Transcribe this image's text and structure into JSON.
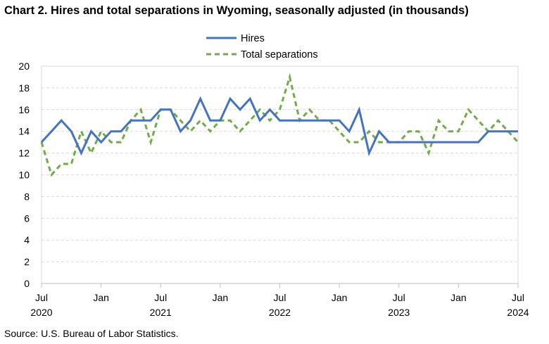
{
  "title": "Chart 2. Hires and total separations in Wyoming, seasonally adjusted (in thousands)",
  "source": "Source: U.S. Bureau of Labor Statistics.",
  "colors": {
    "hires": "#4472C4",
    "separations": "#70AD47",
    "grid": "#D9D9D9",
    "axis": "#BFBFBF"
  },
  "chart_data": {
    "type": "line",
    "ylim": [
      0,
      20
    ],
    "y_ticks": [
      "0",
      "2",
      "4",
      "6",
      "8",
      "10",
      "12",
      "14",
      "16",
      "18",
      "20"
    ],
    "x_tick_labels": [
      {
        "month": "Jul",
        "year": "2020",
        "index": 0
      },
      {
        "month": "Jan",
        "year": "",
        "index": 6
      },
      {
        "month": "Jul",
        "year": "2021",
        "index": 12
      },
      {
        "month": "Jan",
        "year": "",
        "index": 18
      },
      {
        "month": "Jul",
        "year": "2022",
        "index": 24
      },
      {
        "month": "Jan",
        "year": "",
        "index": 30
      },
      {
        "month": "Jul",
        "year": "2023",
        "index": 36
      },
      {
        "month": "Jan",
        "year": "",
        "index": 42
      },
      {
        "month": "Jul",
        "year": "2024",
        "index": 48
      }
    ],
    "x": [
      "2020-07",
      "2020-08",
      "2020-09",
      "2020-10",
      "2020-11",
      "2020-12",
      "2021-01",
      "2021-02",
      "2021-03",
      "2021-04",
      "2021-05",
      "2021-06",
      "2021-07",
      "2021-08",
      "2021-09",
      "2021-10",
      "2021-11",
      "2021-12",
      "2022-01",
      "2022-02",
      "2022-03",
      "2022-04",
      "2022-05",
      "2022-06",
      "2022-07",
      "2022-08",
      "2022-09",
      "2022-10",
      "2022-11",
      "2022-12",
      "2023-01",
      "2023-02",
      "2023-03",
      "2023-04",
      "2023-05",
      "2023-06",
      "2023-07",
      "2023-08",
      "2023-09",
      "2023-10",
      "2023-11",
      "2023-12",
      "2024-01",
      "2024-02",
      "2024-03",
      "2024-04",
      "2024-05",
      "2024-06",
      "2024-07"
    ],
    "series": [
      {
        "name": "Hires",
        "style": "solid",
        "values": [
          13,
          14,
          15,
          14,
          12,
          14,
          13,
          14,
          14,
          15,
          15,
          15,
          16,
          16,
          14,
          15,
          17,
          15,
          15,
          17,
          16,
          17,
          15,
          16,
          15,
          15,
          15,
          15,
          15,
          15,
          15,
          14,
          16,
          12,
          14,
          13,
          13,
          13,
          13,
          13,
          13,
          13,
          13,
          13,
          13,
          14,
          14,
          14,
          14
        ]
      },
      {
        "name": "Total separations",
        "style": "dashed",
        "values": [
          13,
          10,
          11,
          11,
          14,
          12,
          14,
          13,
          13,
          15,
          16,
          13,
          16,
          16,
          15,
          14,
          15,
          14,
          15,
          15,
          14,
          15,
          16,
          15,
          16,
          19,
          15,
          16,
          15,
          15,
          14,
          13,
          13,
          14,
          13,
          13,
          13,
          14,
          14,
          12,
          15,
          14,
          14,
          16,
          15,
          14,
          15,
          14,
          13
        ]
      }
    ],
    "grid": true,
    "legend": "top-center"
  }
}
